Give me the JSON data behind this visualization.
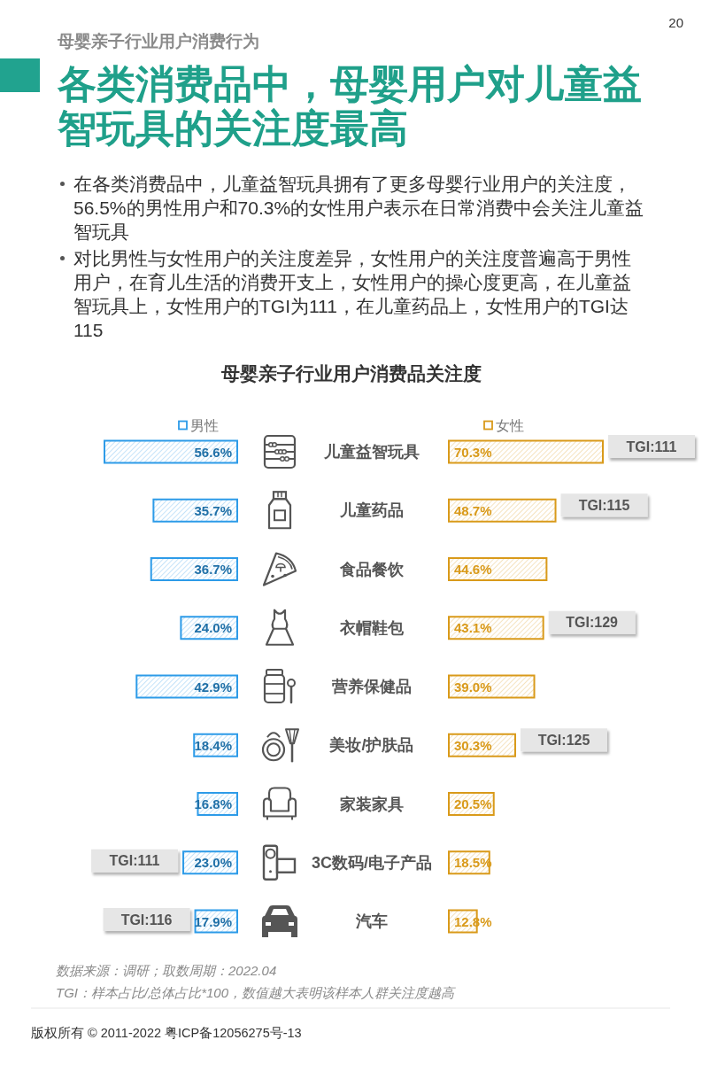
{
  "chart_data": [
    {
      "type": "bar",
      "orientation": "horizontal",
      "title": "各类消费品中，母婴用户对儿童益智玩具的关注度最高",
      "subtitle": "母婴亲子行业用户消费品关注度",
      "categories": [
        "儿童益智玩具",
        "儿童药品",
        "食品餐饮",
        "衣帽鞋包",
        "营养保健品",
        "美妆/护肤品",
        "家装家具",
        "3C数码/电子产品",
        "汽车"
      ],
      "series": [
        {
          "name": "男性",
          "color": "#2d9be8",
          "values": [
            56.6,
            35.7,
            36.7,
            24.0,
            42.9,
            18.4,
            16.8,
            23.0,
            17.9
          ],
          "value_labels": [
            "56.6%",
            "35.7%",
            "36.7%",
            "24.0%",
            "42.9%",
            "18.4%",
            "16.8%",
            "23.0%",
            "17.9%"
          ]
        }
      ],
      "legend": "top",
      "annotations": [
        "20",
        "母婴亲子行业用户消费行为",
        "在各类消费品中，儿童益智玩具拥有了更多母婴行业用户的关注度，56.5%的男性用户和70.3%的女性用户表示在日常消费中会关注儿童益智玩具",
        "对比男性与女性用户的关注度差异，女性用户的关注度普遍高于男性用户，在育儿生活的消费开支上，女性用户的操心度更高，在儿童益智玩具上，女性用户的TGI为111，在儿童药品上，女性用户的TGI达115",
        "数据来源：调研；取数周期：2022.04",
        "TGI：样本占比/总体占比*100，数值越大表明该样本人群关注度越高",
        "版权所有 © 2011-2022 粤ICP备12056275号-13",
        {
          "text": "TGI:111",
          "x": 23.0,
          "y": "3C数码/电子产品"
        },
        {
          "text": "TGI:116",
          "x": 17.9,
          "y": "汽车"
        }
      ]
    },
    {
      "type": "bar",
      "orientation": "horizontal",
      "categories": [
        "儿童益智玩具",
        "儿童药品",
        "食品餐饮",
        "衣帽鞋包",
        "营养保健品",
        "美妆/护肤品",
        "家装家具",
        "3C数码/电子产品",
        "汽车"
      ],
      "series": [
        {
          "name": "女性",
          "color": "#d99a1a",
          "values": [
            70.3,
            48.7,
            44.6,
            43.1,
            39.0,
            30.3,
            20.5,
            18.5,
            12.8
          ],
          "value_labels": [
            "70.3%",
            "48.7%",
            "44.6%",
            "43.1%",
            "39.0%",
            "30.3%",
            "20.5%",
            "18.5%",
            "12.8%"
          ]
        }
      ],
      "legend": "top",
      "tick_labels": false,
      "annotations": [
        {
          "text": "TGI:111",
          "x": 70.3,
          "y": "儿童益智玩具"
        },
        {
          "text": "TGI:115",
          "x": 48.7,
          "y": "儿童药品"
        },
        {
          "text": "TGI:129",
          "x": 43.1,
          "y": "衣帽鞋包"
        },
        {
          "text": "TGI:125",
          "x": 30.3,
          "y": "美妆/护肤品"
        }
      ]
    }
  ]
}
